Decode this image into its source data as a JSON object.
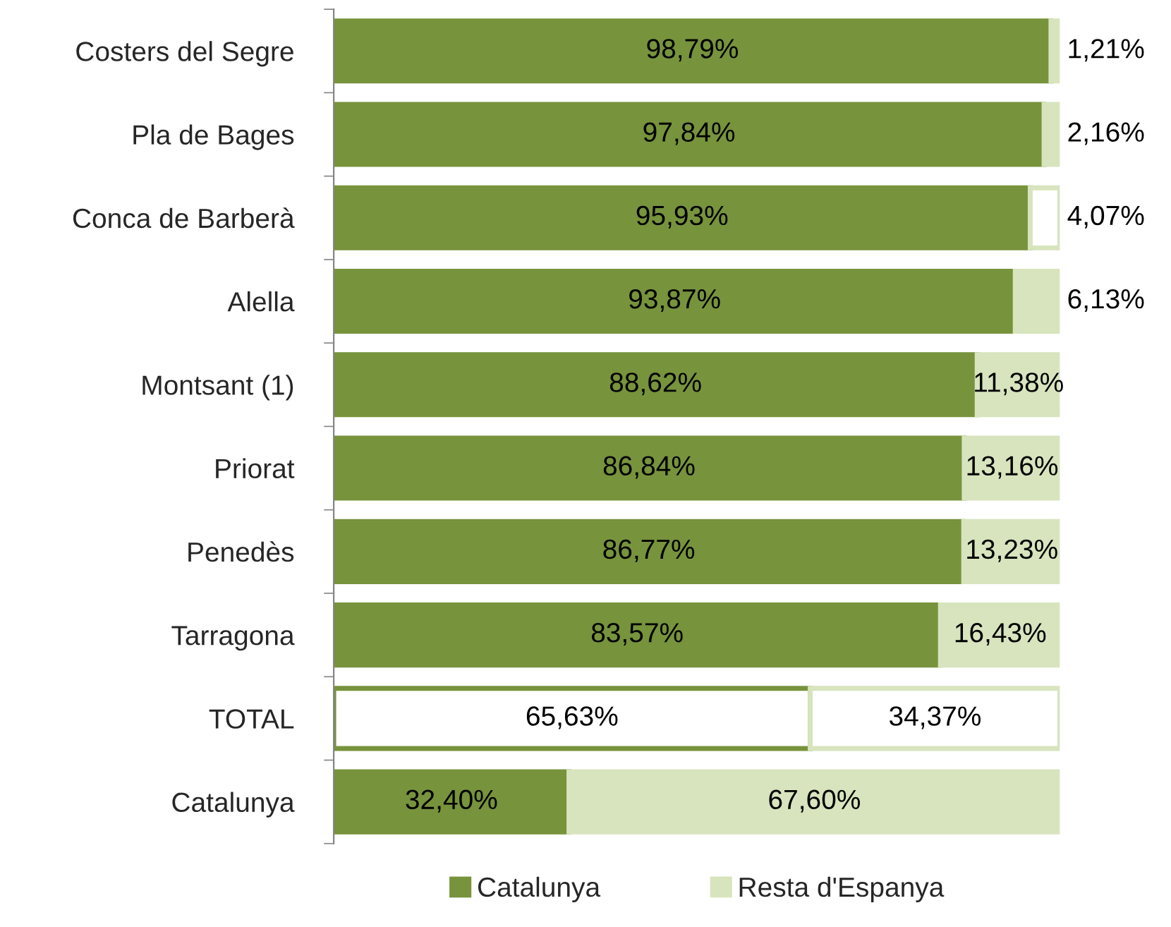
{
  "chart_data": {
    "type": "bar",
    "orientation": "horizontal",
    "stacked": true,
    "legend": "bottom",
    "categories": [
      "Costers del Segre",
      "Pla de Bages",
      "Conca de Barberà",
      "Alella",
      "Montsant (1)",
      "Priorat",
      "Penedès",
      "Tarragona",
      "TOTAL",
      "Catalunya"
    ],
    "series": [
      {
        "name": "Catalunya",
        "color": "#77933c",
        "colors": [
          "#77933c",
          "#77933c",
          "#77933c",
          "#77933c",
          "#77933c",
          "#77933c",
          "#77933c",
          "#77933c",
          "#ffffff",
          "#77933c"
        ],
        "values": [
          98.79,
          97.84,
          95.93,
          93.87,
          88.62,
          86.84,
          86.77,
          83.57,
          65.63,
          32.4
        ],
        "value_labels": [
          "98,79%",
          "97,84%",
          "95,93%",
          "93,87%",
          "88,62%",
          "86,84%",
          "86,77%",
          "83,57%",
          "65,63%",
          "32,40%"
        ]
      },
      {
        "name": "Resta d'Espanya",
        "color": "#d7e4bd",
        "colors": [
          "#d7e4bd",
          "#d7e4bd",
          "#ffffff",
          "#d7e4bd",
          "#d7e4bd",
          "#d7e4bd",
          "#d7e4bd",
          "#d7e4bd",
          "#ffffff",
          "#d7e4bd"
        ],
        "values": [
          1.21,
          2.16,
          4.07,
          6.13,
          11.38,
          13.16,
          13.23,
          16.43,
          34.37,
          67.6
        ],
        "value_labels": [
          "1,21%",
          "2,16%",
          "4,07%",
          "6,13%",
          "11,38%",
          "13,16%",
          "13,23%",
          "16,43%",
          "34,37%",
          "67,60%"
        ]
      }
    ]
  }
}
